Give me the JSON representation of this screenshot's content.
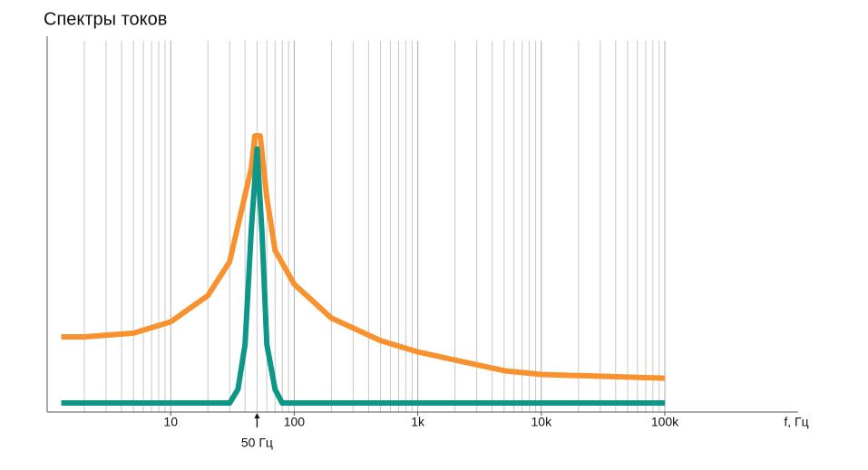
{
  "chart_data": {
    "type": "line",
    "title": "Спектры токов",
    "x_label": "f, Гц",
    "x_scale": "log",
    "xlim": [
      1,
      1200000
    ],
    "xticks": [
      {
        "value": 10,
        "label": "10"
      },
      {
        "value": 100,
        "label": "100"
      },
      {
        "value": 1000,
        "label": "1k"
      },
      {
        "value": 10000,
        "label": "10k"
      },
      {
        "value": 100000,
        "label": "100k"
      }
    ],
    "minor_gridlines": [
      2,
      3,
      4,
      5,
      6,
      7,
      8,
      9,
      20,
      30,
      40,
      50,
      60,
      70,
      80,
      90,
      200,
      300,
      400,
      500,
      600,
      700,
      800,
      900,
      2000,
      3000,
      4000,
      5000,
      6000,
      7000,
      8000,
      9000,
      20000,
      30000,
      40000,
      50000,
      60000,
      70000,
      80000,
      90000
    ],
    "ylim": [
      0,
      100
    ],
    "grid": true,
    "annotation": {
      "text": "50 Гц",
      "x": 50
    },
    "series": [
      {
        "color": "#f7922f",
        "x": [
          1.3,
          2,
          5,
          10,
          20,
          30,
          45,
          48,
          53,
          60,
          70,
          100,
          200,
          500,
          1000,
          5000,
          10000,
          100000
        ],
        "values": [
          20,
          20,
          21,
          24,
          31,
          40,
          65,
          73.5,
          73.5,
          57,
          43,
          34,
          25,
          19,
          16,
          11,
          10,
          9
        ]
      },
      {
        "color": "#0e9688",
        "x": [
          1.3,
          30,
          35,
          40,
          45,
          50,
          55,
          60,
          70,
          80,
          100000
        ],
        "values": [
          2.4,
          2.4,
          6,
          18,
          49,
          70,
          47,
          18,
          6,
          2.4,
          2.4
        ]
      }
    ]
  }
}
